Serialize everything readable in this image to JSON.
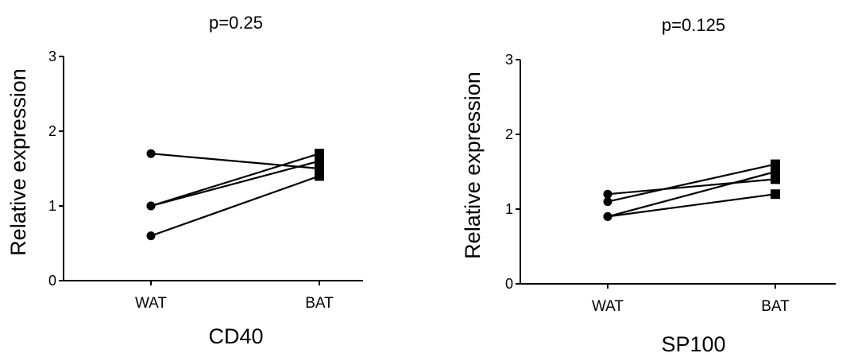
{
  "chart_data": [
    {
      "type": "line",
      "title": "CD40",
      "subtitle": "p=0.25",
      "xlabel": "",
      "ylabel": "Relative expression",
      "categories": [
        "WAT",
        "BAT"
      ],
      "yticks": [
        "0",
        "1",
        "2",
        "3"
      ],
      "ylim": [
        0,
        3
      ],
      "series": [
        {
          "values": [
            1.7,
            1.5
          ]
        },
        {
          "values": [
            1.0,
            1.7
          ]
        },
        {
          "values": [
            1.0,
            1.6
          ]
        },
        {
          "values": [
            0.6,
            1.4
          ]
        }
      ],
      "markers": {
        "WAT": "circle",
        "BAT": "square"
      },
      "grid": false,
      "line_color": "#000000"
    },
    {
      "type": "line",
      "title": "SP100",
      "subtitle": "p=0.125",
      "xlabel": "",
      "ylabel": "Relative expression",
      "categories": [
        "WAT",
        "BAT"
      ],
      "yticks": [
        "0",
        "1",
        "2",
        "3"
      ],
      "ylim": [
        0,
        3
      ],
      "series": [
        {
          "values": [
            1.2,
            1.4
          ]
        },
        {
          "values": [
            1.1,
            1.6
          ]
        },
        {
          "values": [
            0.9,
            1.5
          ]
        },
        {
          "values": [
            0.9,
            1.2
          ]
        }
      ],
      "markers": {
        "WAT": "circle",
        "BAT": "square"
      },
      "grid": false,
      "line_color": "#000000"
    }
  ]
}
